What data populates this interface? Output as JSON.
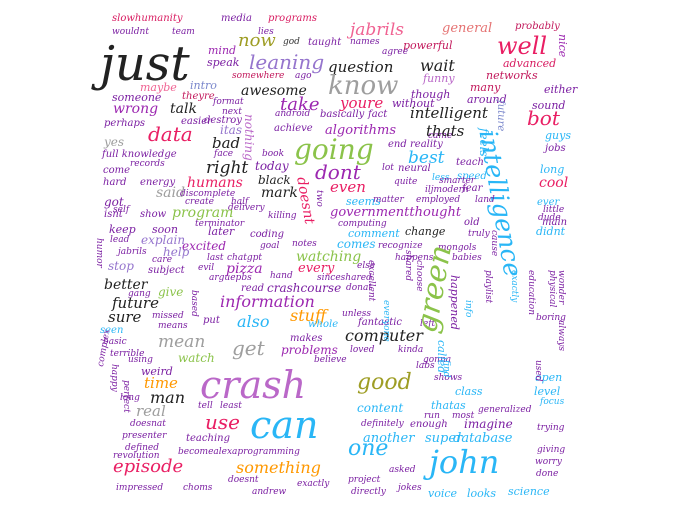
{
  "words": [
    {
      "text": "slowhumanity",
      "color": "#d81b60"
    },
    {
      "text": "media",
      "color": "#7b1fa2"
    },
    {
      "text": "programs",
      "color": "#d81b60"
    },
    {
      "text": "jabrils",
      "color": "#f06292"
    },
    {
      "text": "general",
      "color": "#e57373"
    },
    {
      "text": "probably",
      "color": "#c2185b"
    },
    {
      "text": "wouldnt",
      "color": "#7b1fa2"
    },
    {
      "text": "team",
      "color": "#7b1fa2"
    },
    {
      "text": "lies",
      "color": "#7b1fa2"
    },
    {
      "text": "names",
      "color": "#7b1fa2"
    },
    {
      "text": "god",
      "color": "#333333"
    },
    {
      "text": "taught",
      "color": "#7b1fa2"
    },
    {
      "text": "powerful",
      "color": "#c2185b"
    },
    {
      "text": "well",
      "color": "#e91e63"
    },
    {
      "text": "nice",
      "color": "#9c27b0"
    },
    {
      "text": "just",
      "color": "#222222"
    },
    {
      "text": "now",
      "color": "#9e9d24"
    },
    {
      "text": "mind",
      "color": "#9c27b0"
    },
    {
      "text": "agree",
      "color": "#7b1fa2"
    },
    {
      "text": "advanced",
      "color": "#d81b60"
    },
    {
      "text": "speak",
      "color": "#7b1fa2"
    },
    {
      "text": "leaning",
      "color": "#9575cd"
    },
    {
      "text": "question",
      "color": "#222222"
    },
    {
      "text": "wait",
      "color": "#222222"
    },
    {
      "text": "somewhere",
      "color": "#c2185b"
    },
    {
      "text": "ago",
      "color": "#7b1fa2"
    },
    {
      "text": "funny",
      "color": "#ba68c8"
    },
    {
      "text": "networks",
      "color": "#c2185b"
    },
    {
      "text": "maybe",
      "color": "#f06292"
    },
    {
      "text": "intro",
      "color": "#7986cb"
    },
    {
      "text": "know",
      "color": "#9e9e9e"
    },
    {
      "text": "many",
      "color": "#c2185b"
    },
    {
      "text": "either",
      "color": "#7b1fa2"
    },
    {
      "text": "someone",
      "color": "#7b1fa2"
    },
    {
      "text": "theyre",
      "color": "#c2185b"
    },
    {
      "text": "format",
      "color": "#7b1fa2"
    },
    {
      "text": "awesome",
      "color": "#222222"
    },
    {
      "text": "though",
      "color": "#7b1fa2"
    },
    {
      "text": "around",
      "color": "#7b1fa2"
    },
    {
      "text": "sound",
      "color": "#7b1fa2"
    },
    {
      "text": "wrong",
      "color": "#9c27b0"
    },
    {
      "text": "talk",
      "color": "#222222"
    },
    {
      "text": "next",
      "color": "#7b1fa2"
    },
    {
      "text": "take",
      "color": "#9c27b0"
    },
    {
      "text": "youre",
      "color": "#e91e63"
    },
    {
      "text": "without",
      "color": "#7b1fa2"
    },
    {
      "text": "intelligent",
      "color": "#222222"
    },
    {
      "text": "future",
      "color": "#7986cb"
    },
    {
      "text": "bot",
      "color": "#e91e63"
    },
    {
      "text": "perhaps",
      "color": "#7b1fa2"
    },
    {
      "text": "easier",
      "color": "#7b1fa2"
    },
    {
      "text": "destroy",
      "color": "#7b1fa2"
    },
    {
      "text": "android",
      "color": "#7b1fa2"
    },
    {
      "text": "basically",
      "color": "#7b1fa2"
    },
    {
      "text": "fact",
      "color": "#7b1fa2"
    },
    {
      "text": "data",
      "color": "#e91e63"
    },
    {
      "text": "itas",
      "color": "#9575cd"
    },
    {
      "text": "came",
      "color": "#7b1fa2"
    },
    {
      "text": "achieve",
      "color": "#7b1fa2"
    },
    {
      "text": "algorithms",
      "color": "#9c27b0"
    },
    {
      "text": "thats",
      "color": "#222222"
    },
    {
      "text": "feels",
      "color": "#29b6f6"
    },
    {
      "text": "guys",
      "color": "#29b6f6"
    },
    {
      "text": "yes",
      "color": "#9e9e9e"
    },
    {
      "text": "bad",
      "color": "#222222"
    },
    {
      "text": "nothing",
      "color": "#ba68c8"
    },
    {
      "text": "going",
      "color": "#8bc34a"
    },
    {
      "text": "end",
      "color": "#7b1fa2"
    },
    {
      "text": "reality",
      "color": "#7b1fa2"
    },
    {
      "text": "jobs",
      "color": "#7b1fa2"
    },
    {
      "text": "full knowledge",
      "color": "#7b1fa2"
    },
    {
      "text": "face",
      "color": "#7b1fa2"
    },
    {
      "text": "book",
      "color": "#7b1fa2"
    },
    {
      "text": "best",
      "color": "#29b6f6"
    },
    {
      "text": "intelligence",
      "color": "#29b6f6"
    },
    {
      "text": "teach",
      "color": "#7b1fa2"
    },
    {
      "text": "records",
      "color": "#7b1fa2"
    },
    {
      "text": "right",
      "color": "#222222"
    },
    {
      "text": "today",
      "color": "#7b1fa2"
    },
    {
      "text": "lot",
      "color": "#7b1fa2"
    },
    {
      "text": "neural",
      "color": "#7b1fa2"
    },
    {
      "text": "long",
      "color": "#29b6f6"
    },
    {
      "text": "come",
      "color": "#7b1fa2"
    },
    {
      "text": "dont",
      "color": "#9c27b0"
    },
    {
      "text": "less",
      "color": "#29b6f6"
    },
    {
      "text": "speed",
      "color": "#29b6f6"
    },
    {
      "text": "hard",
      "color": "#7b1fa2"
    },
    {
      "text": "energy",
      "color": "#7b1fa2"
    },
    {
      "text": "humans",
      "color": "#e91e63"
    },
    {
      "text": "black",
      "color": "#222222"
    },
    {
      "text": "quite",
      "color": "#7b1fa2"
    },
    {
      "text": "fear",
      "color": "#7b1fa2"
    },
    {
      "text": "cool",
      "color": "#e91e63"
    },
    {
      "text": "said",
      "color": "#9e9e9e"
    },
    {
      "text": "mark",
      "color": "#222222"
    },
    {
      "text": "even",
      "color": "#e91e63"
    },
    {
      "text": "discomplete",
      "color": "#7b1fa2"
    },
    {
      "text": "iljmodern",
      "color": "#7b1fa2"
    },
    {
      "text": "got",
      "color": "#7b1fa2"
    },
    {
      "text": "create",
      "color": "#7b1fa2"
    },
    {
      "text": "half",
      "color": "#7b1fa2"
    },
    {
      "text": "seems",
      "color": "#29b6f6"
    },
    {
      "text": "matter",
      "color": "#7b1fa2"
    },
    {
      "text": "employed",
      "color": "#7b1fa2"
    },
    {
      "text": "land",
      "color": "#7b1fa2"
    },
    {
      "text": "ever",
      "color": "#29b6f6"
    },
    {
      "text": "self",
      "color": "#7b1fa2"
    },
    {
      "text": "delivery",
      "color": "#7b1fa2"
    },
    {
      "text": "little",
      "color": "#7b1fa2"
    },
    {
      "text": "isnt",
      "color": "#7b1fa2"
    },
    {
      "text": "show",
      "color": "#7b1fa2"
    },
    {
      "text": "program",
      "color": "#8bc34a"
    },
    {
      "text": "doesnt",
      "color": "#e91e63"
    },
    {
      "text": "governmentthought",
      "color": "#9c27b0"
    },
    {
      "text": "dude",
      "color": "#7b1fa2"
    },
    {
      "text": "terminator",
      "color": "#7b1fa2"
    },
    {
      "text": "killing",
      "color": "#7b1fa2"
    },
    {
      "text": "two",
      "color": "#7b1fa2"
    },
    {
      "text": "old",
      "color": "#7b1fa2"
    },
    {
      "text": "main",
      "color": "#7b1fa2"
    },
    {
      "text": "keep",
      "color": "#7b1fa2"
    },
    {
      "text": "soon",
      "color": "#7b1fa2"
    },
    {
      "text": "later",
      "color": "#7b1fa2"
    },
    {
      "text": "computing",
      "color": "#7b1fa2"
    },
    {
      "text": "truly",
      "color": "#7b1fa2"
    },
    {
      "text": "didnt",
      "color": "#29b6f6"
    },
    {
      "text": "lead",
      "color": "#7b1fa2"
    },
    {
      "text": "explain",
      "color": "#9575cd"
    },
    {
      "text": "coding",
      "color": "#7b1fa2"
    },
    {
      "text": "comment",
      "color": "#29b6f6"
    },
    {
      "text": "change",
      "color": "#222222"
    },
    {
      "text": "excited",
      "color": "#9c27b0"
    },
    {
      "text": "goal",
      "color": "#7b1fa2"
    },
    {
      "text": "notes",
      "color": "#7b1fa2"
    },
    {
      "text": "comes",
      "color": "#29b6f6"
    },
    {
      "text": "recognize",
      "color": "#7b1fa2"
    },
    {
      "text": "mongols",
      "color": "#7b1fa2"
    },
    {
      "text": "humor",
      "color": "#7b1fa2"
    },
    {
      "text": "jabrils",
      "color": "#7b1fa2"
    },
    {
      "text": "help",
      "color": "#9575cd"
    },
    {
      "text": "last",
      "color": "#7b1fa2"
    },
    {
      "text": "chatgpt",
      "color": "#7b1fa2"
    },
    {
      "text": "watching",
      "color": "#8bc34a"
    },
    {
      "text": "happens",
      "color": "#7b1fa2"
    },
    {
      "text": "babies",
      "color": "#7b1fa2"
    },
    {
      "text": "care",
      "color": "#7b1fa2"
    },
    {
      "text": "evil",
      "color": "#7b1fa2"
    },
    {
      "text": "pizza",
      "color": "#9c27b0"
    },
    {
      "text": "every",
      "color": "#e91e63"
    },
    {
      "text": "else",
      "color": "#7b1fa2"
    },
    {
      "text": "stop",
      "color": "#9575cd"
    },
    {
      "text": "subject",
      "color": "#7b1fa2"
    },
    {
      "text": "arguepbs",
      "color": "#7b1fa2"
    },
    {
      "text": "hand",
      "color": "#7b1fa2"
    },
    {
      "text": "sinceshared",
      "color": "#7b1fa2"
    },
    {
      "text": "better",
      "color": "#222222"
    },
    {
      "text": "read",
      "color": "#7b1fa2"
    },
    {
      "text": "crashcourse",
      "color": "#7b1fa2"
    },
    {
      "text": "donat",
      "color": "#7b1fa2"
    },
    {
      "text": "give",
      "color": "#8bc34a"
    },
    {
      "text": "gang",
      "color": "#7b1fa2"
    },
    {
      "text": "information",
      "color": "#9c27b0"
    },
    {
      "text": "future",
      "color": "#222222"
    },
    {
      "text": "sure",
      "color": "#222222"
    },
    {
      "text": "stuff",
      "color": "#ff9800"
    },
    {
      "text": "unless",
      "color": "#7b1fa2"
    },
    {
      "text": "missed",
      "color": "#7b1fa2"
    },
    {
      "text": "put",
      "color": "#7b1fa2"
    },
    {
      "text": "also",
      "color": "#29b6f6"
    },
    {
      "text": "whole",
      "color": "#29b6f6"
    },
    {
      "text": "fantastic",
      "color": "#7b1fa2"
    },
    {
      "text": "left",
      "color": "#7b1fa2"
    },
    {
      "text": "seen",
      "color": "#29b6f6"
    },
    {
      "text": "means",
      "color": "#7b1fa2"
    },
    {
      "text": "computer",
      "color": "#222222"
    },
    {
      "text": "basic",
      "color": "#7b1fa2"
    },
    {
      "text": "mean",
      "color": "#9e9e9e"
    },
    {
      "text": "get",
      "color": "#9e9e9e"
    },
    {
      "text": "makes",
      "color": "#7b1fa2"
    },
    {
      "text": "terrible",
      "color": "#7b1fa2"
    },
    {
      "text": "problems",
      "color": "#9c27b0"
    },
    {
      "text": "loved",
      "color": "#7b1fa2"
    },
    {
      "text": "kinda",
      "color": "#7b1fa2"
    },
    {
      "text": "using",
      "color": "#7b1fa2"
    },
    {
      "text": "watch",
      "color": "#8bc34a"
    },
    {
      "text": "believe",
      "color": "#7b1fa2"
    },
    {
      "text": "gonna",
      "color": "#7b1fa2"
    },
    {
      "text": "labs",
      "color": "#7b1fa2"
    },
    {
      "text": "weird",
      "color": "#7b1fa2"
    },
    {
      "text": "green",
      "color": "#8bc34a"
    },
    {
      "text": "time",
      "color": "#ff9800"
    },
    {
      "text": "crash",
      "color": "#ba68c8"
    },
    {
      "text": "good",
      "color": "#9e9d24"
    },
    {
      "text": "shows",
      "color": "#7b1fa2"
    },
    {
      "text": "open",
      "color": "#29b6f6"
    },
    {
      "text": "complex",
      "color": "#7b1fa2"
    },
    {
      "text": "long",
      "color": "#7b1fa2"
    },
    {
      "text": "man",
      "color": "#222222"
    },
    {
      "text": "class",
      "color": "#29b6f6"
    },
    {
      "text": "level",
      "color": "#29b6f6"
    },
    {
      "text": "real",
      "color": "#9e9e9e"
    },
    {
      "text": "tell",
      "color": "#7b1fa2"
    },
    {
      "text": "least",
      "color": "#7b1fa2"
    },
    {
      "text": "content",
      "color": "#29b6f6"
    },
    {
      "text": "thatas",
      "color": "#29b6f6"
    },
    {
      "text": "focus",
      "color": "#29b6f6"
    },
    {
      "text": "run",
      "color": "#7b1fa2"
    },
    {
      "text": "most",
      "color": "#7b1fa2"
    },
    {
      "text": "generalized",
      "color": "#7b1fa2"
    },
    {
      "text": "doesnat",
      "color": "#7b1fa2"
    },
    {
      "text": "use",
      "color": "#e91e63"
    },
    {
      "text": "can",
      "color": "#29b6f6"
    },
    {
      "text": "definitely",
      "color": "#7b1fa2"
    },
    {
      "text": "enough",
      "color": "#7b1fa2"
    },
    {
      "text": "imagine",
      "color": "#7b1fa2"
    },
    {
      "text": "trying",
      "color": "#7b1fa2"
    },
    {
      "text": "presenter",
      "color": "#7b1fa2"
    },
    {
      "text": "teaching",
      "color": "#7b1fa2"
    },
    {
      "text": "another",
      "color": "#29b6f6"
    },
    {
      "text": "super",
      "color": "#29b6f6"
    },
    {
      "text": "database",
      "color": "#29b6f6"
    },
    {
      "text": "defined",
      "color": "#7b1fa2"
    },
    {
      "text": "giving",
      "color": "#7b1fa2"
    },
    {
      "text": "revolution",
      "color": "#7b1fa2"
    },
    {
      "text": "becomealexaprogramming",
      "color": "#7b1fa2"
    },
    {
      "text": "one",
      "color": "#29b6f6"
    },
    {
      "text": "john",
      "color": "#29b6f6"
    },
    {
      "text": "worry",
      "color": "#7b1fa2"
    },
    {
      "text": "episode",
      "color": "#e91e63"
    },
    {
      "text": "something",
      "color": "#ff9800"
    },
    {
      "text": "asked",
      "color": "#7b1fa2"
    },
    {
      "text": "done",
      "color": "#7b1fa2"
    },
    {
      "text": "project",
      "color": "#7b1fa2"
    },
    {
      "text": "impressed",
      "color": "#7b1fa2"
    },
    {
      "text": "choms",
      "color": "#7b1fa2"
    },
    {
      "text": "doesnt",
      "color": "#7b1fa2"
    },
    {
      "text": "andrew",
      "color": "#7b1fa2"
    },
    {
      "text": "exactly",
      "color": "#7b1fa2"
    },
    {
      "text": "directly",
      "color": "#7b1fa2"
    },
    {
      "text": "jokes",
      "color": "#7b1fa2"
    },
    {
      "text": "voice",
      "color": "#29b6f6"
    },
    {
      "text": "looks",
      "color": "#29b6f6"
    },
    {
      "text": "science",
      "color": "#29b6f6"
    },
    {
      "text": "perfect",
      "color": "#7b1fa2"
    },
    {
      "text": "happy",
      "color": "#7b1fa2"
    },
    {
      "text": "everyone",
      "color": "#29b6f6"
    },
    {
      "text": "exactly",
      "color": "#29b6f6"
    },
    {
      "text": "education",
      "color": "#7b1fa2"
    },
    {
      "text": "physical",
      "color": "#7b1fa2"
    },
    {
      "text": "wonder",
      "color": "#7b1fa2"
    },
    {
      "text": "boring",
      "color": "#7b1fa2"
    },
    {
      "text": "used",
      "color": "#7b1fa2"
    },
    {
      "text": "always",
      "color": "#7b1fa2"
    },
    {
      "text": "happened",
      "color": "#7b1fa2"
    },
    {
      "text": "called",
      "color": "#29b6f6"
    },
    {
      "text": "find",
      "color": "#29b6f6"
    },
    {
      "text": "info",
      "color": "#29b6f6"
    },
    {
      "text": "playlist",
      "color": "#7b1fa2"
    },
    {
      "text": "cause",
      "color": "#7b1fa2"
    },
    {
      "text": "choose",
      "color": "#7b1fa2"
    },
    {
      "text": "based",
      "color": "#7b1fa2"
    },
    {
      "text": "excellent",
      "color": "#7b1fa2"
    },
    {
      "text": "shared",
      "color": "#7b1fa2"
    },
    {
      "text": "smarter",
      "color": "#7b1fa2"
    }
  ]
}
